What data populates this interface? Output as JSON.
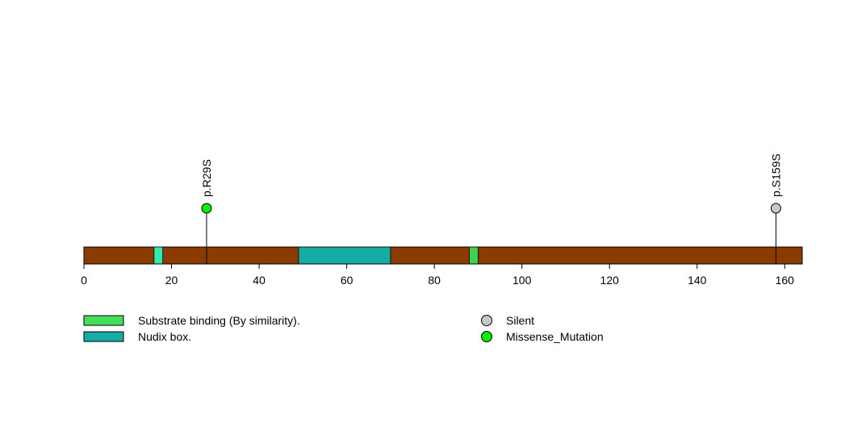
{
  "chart_data": {
    "type": "lollipop",
    "xlim": [
      0,
      164
    ],
    "x_ticks": [
      0,
      20,
      40,
      60,
      80,
      100,
      120,
      140,
      160
    ],
    "protein_color": "#8B3A00",
    "domains": [
      {
        "start": 16,
        "end": 18,
        "color": "#35E8B0"
      },
      {
        "start": 49,
        "end": 70,
        "color": "#17ABA5"
      },
      {
        "start": 88,
        "end": 90,
        "color": "#3FD24B"
      }
    ],
    "mutations": [
      {
        "position": 28,
        "label": "p.R29S",
        "type": "Missense_Mutation",
        "color": "#00EE00"
      },
      {
        "position": 158,
        "label": "p.S159S",
        "type": "Silent",
        "color": "#C8C8C8"
      }
    ],
    "legend_domains": [
      {
        "label": "Substrate binding (By similarity).",
        "color": "#45DE5A"
      },
      {
        "label": "Nudix box.",
        "color": "#17ABA5"
      }
    ],
    "legend_mutations": [
      {
        "label": "Silent",
        "color": "#C8C8C8"
      },
      {
        "label": "Missense_Mutation",
        "color": "#00EE00"
      }
    ]
  }
}
